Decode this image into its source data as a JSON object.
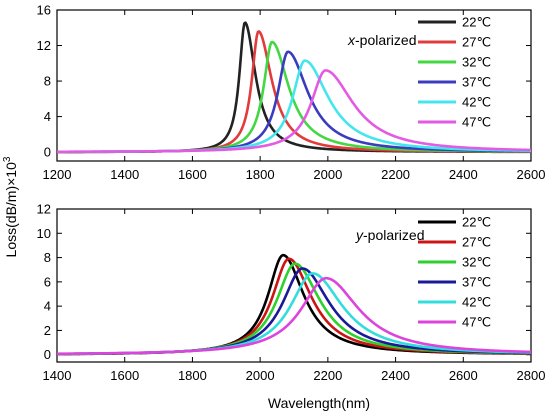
{
  "ylabel": "Loss(dB/m)×10",
  "ylabel_sup": "3",
  "xlabel": "Wavelength(nm)",
  "chart_data": [
    {
      "type": "line",
      "annotation_var": "x",
      "annotation_rest": "-polarized",
      "xlim": [
        1200,
        2600
      ],
      "ylim": [
        -1,
        16
      ],
      "xticks": [
        1200,
        1400,
        1600,
        1800,
        2000,
        2200,
        2400,
        2600
      ],
      "yticks": [
        0,
        4,
        8,
        12,
        16
      ],
      "ytick_labels": [
        "0",
        "4",
        "8",
        "12",
        "16"
      ],
      "baseline": 0.0,
      "legend_position": "top-right",
      "series": [
        {
          "name": "22℃",
          "color": "#222222",
          "peak_x": 1755,
          "peak_y": 14.6,
          "w_left": 20,
          "w_right": 38
        },
        {
          "name": "27℃",
          "color": "#e03c3c",
          "peak_x": 1795,
          "peak_y": 13.6,
          "w_left": 24,
          "w_right": 48
        },
        {
          "name": "32℃",
          "color": "#43d843",
          "peak_x": 1835,
          "peak_y": 12.4,
          "w_left": 30,
          "w_right": 60
        },
        {
          "name": "37℃",
          "color": "#3b3bc0",
          "peak_x": 1882,
          "peak_y": 11.3,
          "w_left": 36,
          "w_right": 72
        },
        {
          "name": "42℃",
          "color": "#44e6ee",
          "peak_x": 1932,
          "peak_y": 10.3,
          "w_left": 44,
          "w_right": 85
        },
        {
          "name": "47℃",
          "color": "#e35ae3",
          "peak_x": 1993,
          "peak_y": 9.2,
          "w_left": 52,
          "w_right": 100
        }
      ]
    },
    {
      "type": "line",
      "annotation_var": "y",
      "annotation_rest": "-polarized",
      "xlim": [
        1400,
        2800
      ],
      "ylim": [
        -0.6,
        12
      ],
      "xticks": [
        1400,
        1600,
        1800,
        2000,
        2200,
        2400,
        2600,
        2800
      ],
      "yticks": [
        0,
        2,
        4,
        6,
        8,
        10,
        12
      ],
      "ytick_labels": [
        "0",
        "2",
        "4",
        "6",
        "8",
        "10",
        "12"
      ],
      "baseline": 0.0,
      "legend_position": "top-right",
      "series": [
        {
          "name": "22℃",
          "color": "#000000",
          "peak_x": 2068,
          "peak_y": 8.2,
          "w_left": 55,
          "w_right": 75
        },
        {
          "name": "27℃",
          "color": "#cc1414",
          "peak_x": 2085,
          "peak_y": 7.9,
          "w_left": 60,
          "w_right": 82
        },
        {
          "name": "32℃",
          "color": "#2ed02e",
          "peak_x": 2103,
          "peak_y": 7.5,
          "w_left": 66,
          "w_right": 90
        },
        {
          "name": "37℃",
          "color": "#1a1a99",
          "peak_x": 2125,
          "peak_y": 7.1,
          "w_left": 72,
          "w_right": 98
        },
        {
          "name": "42℃",
          "color": "#33dddd",
          "peak_x": 2155,
          "peak_y": 6.7,
          "w_left": 80,
          "w_right": 108
        },
        {
          "name": "47℃",
          "color": "#dd44dd",
          "peak_x": 2195,
          "peak_y": 6.3,
          "w_left": 90,
          "w_right": 118
        }
      ]
    }
  ]
}
